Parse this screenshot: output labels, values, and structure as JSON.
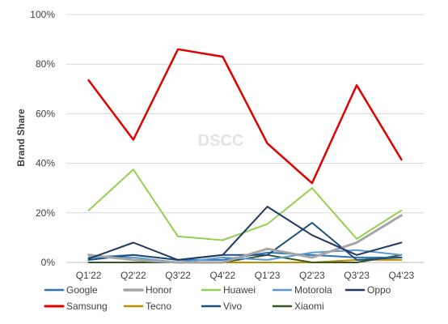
{
  "chart_data": {
    "type": "line",
    "title": "",
    "xlabel": "",
    "ylabel": "Brand Share",
    "watermark": "DSCC",
    "categories": [
      "Q1'22",
      "Q2'22",
      "Q3'22",
      "Q4'22",
      "Q1'23",
      "Q2'23",
      "Q3'23",
      "Q4'23"
    ],
    "ylim": [
      0,
      100
    ],
    "yticks": [
      0,
      20,
      40,
      60,
      80,
      100
    ],
    "ytick_labels": [
      "0%",
      "20%",
      "40%",
      "60%",
      "80%",
      "100%"
    ],
    "grid": true,
    "legend_position": "bottom",
    "series": [
      {
        "name": "Google",
        "color": "#2e75b6",
        "width": 2,
        "values": [
          2,
          3,
          1,
          1,
          4,
          3,
          2,
          2
        ]
      },
      {
        "name": "Honor",
        "color": "#a5a5a5",
        "width": 3,
        "values": [
          3,
          1,
          0,
          0,
          5.5,
          2,
          8,
          19
        ]
      },
      {
        "name": "Huawei",
        "color": "#92d050",
        "width": 2,
        "values": [
          21,
          37.5,
          10.5,
          9,
          15.5,
          30,
          9.5,
          21
        ]
      },
      {
        "name": "Motorola",
        "color": "#5b9bd5",
        "width": 2,
        "values": [
          2,
          2,
          0,
          2,
          1,
          4,
          5,
          3
        ]
      },
      {
        "name": "Oppo",
        "color": "#203864",
        "width": 2,
        "values": [
          1.5,
          8,
          1,
          3,
          22.5,
          11,
          3,
          8
        ]
      },
      {
        "name": "Samsung",
        "color": "#e00000",
        "width": 2.5,
        "values": [
          73.5,
          49.5,
          86,
          83,
          48,
          32,
          71.5,
          41.5
        ]
      },
      {
        "name": "Tecno",
        "color": "#bf8f00",
        "width": 2,
        "values": [
          0,
          0,
          0,
          0,
          0,
          0,
          1,
          1
        ]
      },
      {
        "name": "Vivo",
        "color": "#1f4e79",
        "width": 2,
        "values": [
          1,
          3,
          1,
          3,
          3,
          16,
          1,
          2
        ]
      },
      {
        "name": "Xiaomi",
        "color": "#375623",
        "width": 2,
        "values": [
          0,
          0,
          0,
          0,
          3,
          0,
          0,
          3
        ]
      }
    ]
  }
}
